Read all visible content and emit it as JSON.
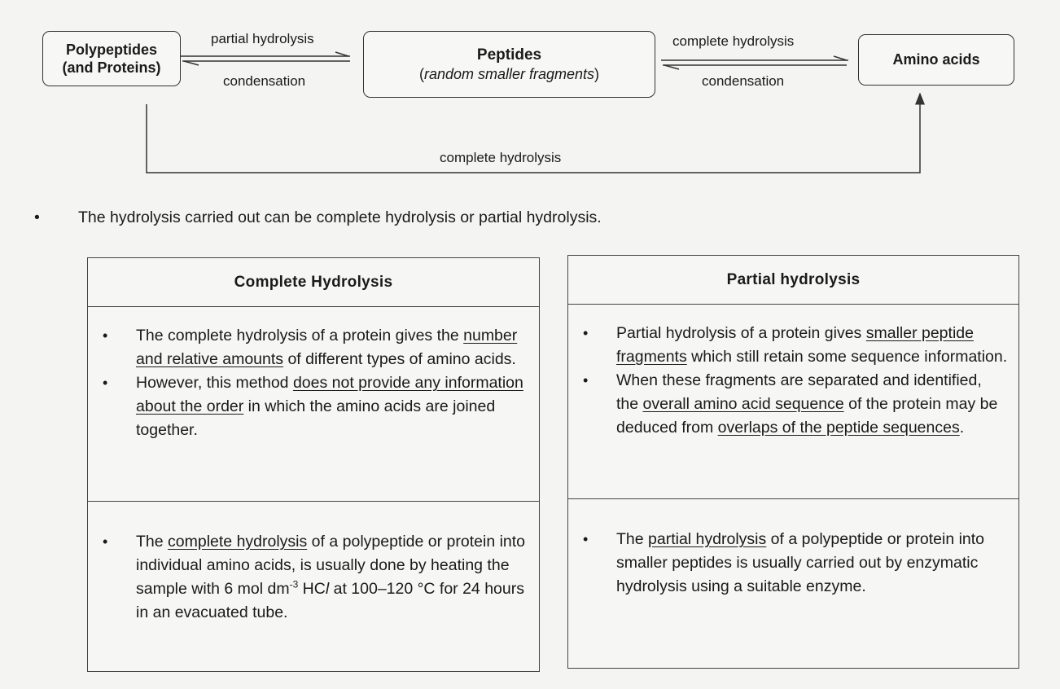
{
  "diagram": {
    "nodes": {
      "polypeptides_line1": "Polypeptides",
      "polypeptides_line2": "(and Proteins)",
      "peptides_title": "Peptides",
      "peptides_subtitle": "random smaller fragments",
      "amino_acids": "Amino acids"
    },
    "edges": {
      "partial_hydrolysis": "partial hydrolysis",
      "condensation_1": "condensation",
      "complete_hydrolysis_top": "complete hydrolysis",
      "condensation_2": "condensation",
      "complete_hydrolysis_bottom": "complete hydrolysis"
    }
  },
  "intro_bullet": "The hydrolysis carried out can be complete hydrolysis or partial hydrolysis.",
  "tables": {
    "complete": {
      "heading": "Complete Hydrolysis",
      "c1b1": [
        "The complete hydrolysis of a protein gives the ",
        "number and relative amounts",
        " of different types of amino acids."
      ],
      "c1b2": [
        "However, this method ",
        "does not provide any information about the order",
        " in which the amino acids are joined together."
      ],
      "c2b1": [
        "The ",
        "complete hydrolysis",
        " of a polypeptide or protein into individual amino acids, is usually done by heating the sample with 6 mol dm",
        "-3",
        " HC",
        "l",
        " at 100–120 °C for 24 hours in an evacuated tube."
      ]
    },
    "partial": {
      "heading": "Partial hydrolysis",
      "c1b1": [
        "Partial hydrolysis of a protein gives ",
        "smaller peptide fragments",
        " which still retain some sequence information."
      ],
      "c1b2": [
        "When these fragments are separated and identified, the ",
        "overall amino acid sequence",
        " of the protein may be deduced from ",
        "overlaps of the peptide sequences",
        "."
      ],
      "c2b1": [
        "The ",
        "partial hydrolysis",
        " of a polypeptide or protein into smaller peptides is usually carried out by enzymatic hydrolysis using a suitable enzyme."
      ]
    }
  }
}
